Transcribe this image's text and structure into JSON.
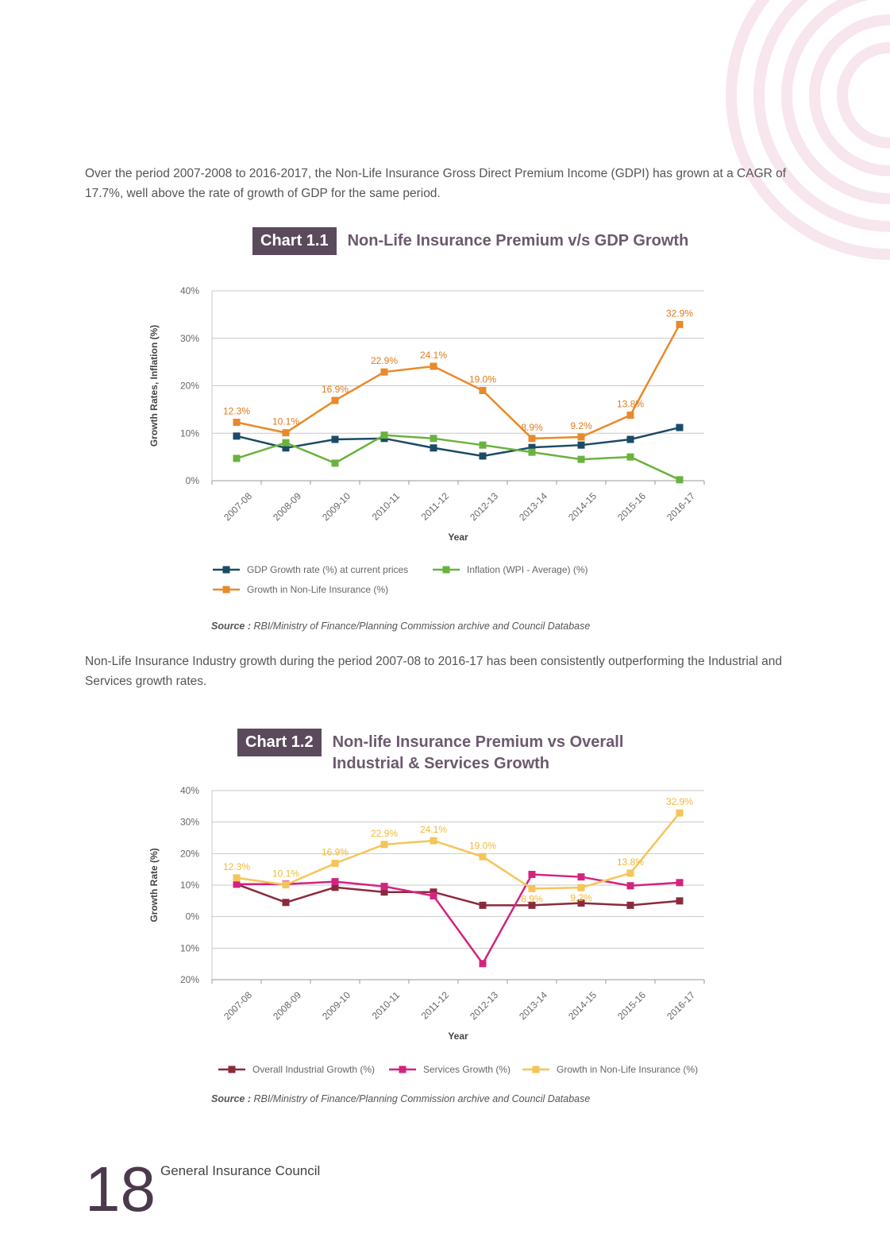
{
  "paragraphs": [
    "Over the period 2007-2008 to 2016-2017, the Non-Life Insurance Gross Direct Premium Income (GDPI) has grown at a CAGR of 17.7%, well above the rate of growth of GDP for the same period.",
    "Non-Life Insurance Industry growth during the period 2007-08 to 2016-17 has been consistently outperforming the Industrial and Services growth rates."
  ],
  "chart_data": [
    {
      "type": "line",
      "number": "Chart 1.1",
      "title": "Non-Life Insurance Premium v/s GDP Growth",
      "ylabel": "Growth Rates, Inflation (%)",
      "xlabel": "Year",
      "categories": [
        "2007-08",
        "2008-09",
        "2009-10",
        "2010-11",
        "2011-12",
        "2012-13",
        "2013-14",
        "2014-15",
        "2015-16",
        "2016-17"
      ],
      "ylim": [
        0,
        40
      ],
      "yticks": [
        {
          "value": 0,
          "label": "0%"
        },
        {
          "value": 10,
          "label": "10%"
        },
        {
          "value": 20,
          "label": "20%"
        },
        {
          "value": 30,
          "label": "30%"
        },
        {
          "value": 40,
          "label": "40%"
        }
      ],
      "grid": true,
      "series": [
        {
          "name": "GDP Growth rate (%) at current prices",
          "color": "#1b4b66",
          "values": [
            9.4,
            6.9,
            8.7,
            8.9,
            6.9,
            5.2,
            7.0,
            7.5,
            8.7,
            11.2
          ]
        },
        {
          "name": "Inflation (WPI - Average) (%)",
          "color": "#6ab23e",
          "values": [
            4.7,
            8.0,
            3.7,
            9.6,
            8.9,
            7.5,
            6.0,
            4.5,
            5.0,
            0.2
          ]
        },
        {
          "name": "Growth in Non-Life Insurance (%)",
          "color": "#e88a2a",
          "values": [
            12.3,
            10.1,
            16.9,
            22.9,
            24.1,
            19.0,
            8.9,
            9.2,
            13.8,
            32.9
          ],
          "value_labels": [
            "12.3%",
            "10.1%",
            "16.9%",
            "22.9%",
            "24.1%",
            "19.0%",
            "8.9%",
            "9.2%",
            "13.8%",
            "32.9%"
          ]
        }
      ],
      "source_label": "Source :",
      "source": "RBI/Ministry of Finance/Planning Commission archive and Council Database"
    },
    {
      "type": "line",
      "number": "Chart 1.2",
      "title": "Non-life Insurance Premium vs Overall Industrial & Services Growth",
      "ylabel": "Growth Rate (%)",
      "xlabel": "Year",
      "categories": [
        "2007-08",
        "2008-09",
        "2009-10",
        "2010-11",
        "2011-12",
        "2012-13",
        "2013-14",
        "2014-15",
        "2015-16",
        "2016-17"
      ],
      "ylim": [
        -20,
        40
      ],
      "yticks": [
        {
          "value": -20,
          "label": "20%"
        },
        {
          "value": -10,
          "label": "10%"
        },
        {
          "value": 0,
          "label": "0%"
        },
        {
          "value": 10,
          "label": "10%"
        },
        {
          "value": 20,
          "label": "20%"
        },
        {
          "value": 30,
          "label": "30%"
        },
        {
          "value": 40,
          "label": "40%"
        }
      ],
      "grid": true,
      "series": [
        {
          "name": "Overall Industrial Growth (%)",
          "color": "#8b2a3c",
          "values": [
            10.3,
            4.5,
            9.3,
            7.8,
            7.8,
            3.6,
            3.6,
            4.3,
            3.6,
            5.0
          ]
        },
        {
          "name": "Services Growth (%)",
          "color": "#d4237f",
          "values": [
            10.3,
            10.3,
            11.1,
            9.6,
            6.6,
            -14.9,
            13.4,
            12.6,
            9.8,
            10.8
          ]
        },
        {
          "name": "Growth in Non-Life Insurance (%)",
          "color": "#f5c55a",
          "values": [
            12.3,
            10.1,
            16.9,
            22.9,
            24.1,
            19.0,
            8.9,
            9.2,
            13.8,
            32.9
          ],
          "value_labels": [
            "12.3%",
            "10.1%",
            "16.9%",
            "22.9%",
            "24.1%",
            "19.0%",
            "8.9%",
            "9.2%",
            "13.8%",
            "32.9%"
          ]
        }
      ],
      "source_label": "Source :",
      "source": "RBI/Ministry of Finance/Planning Commission archive and Council Database"
    }
  ],
  "footer": {
    "page_number": "18",
    "text": "General Insurance Council"
  }
}
